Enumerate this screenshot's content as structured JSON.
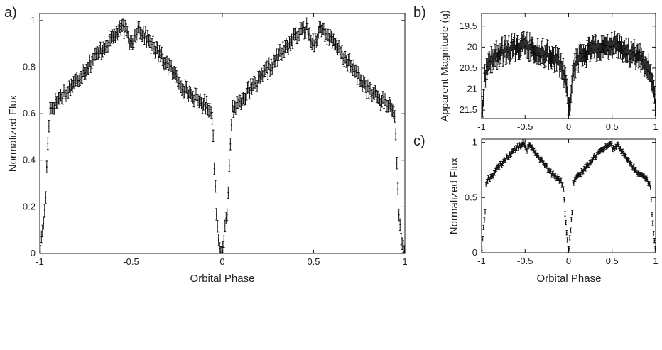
{
  "chart_data": [
    {
      "panel_label": "a)",
      "type": "scatter",
      "xlabel": "Orbital Phase",
      "ylabel": "Normalized Flux",
      "xlim": [
        -1,
        1
      ],
      "ylim": [
        0,
        1.03
      ],
      "y_reversed": false,
      "xticks": [
        -1,
        -0.5,
        0,
        0.5,
        1
      ],
      "yticks": [
        0,
        0.2,
        0.4,
        0.6,
        0.8,
        1
      ],
      "grid": false,
      "error_bars": true,
      "points_per_cycle": 170,
      "err": 0.025,
      "series": [
        {
          "x": [
            -1,
            -0.97,
            -0.955,
            -0.945,
            -0.93,
            -0.9,
            -0.8,
            -0.7,
            -0.6,
            -0.54,
            -0.5,
            -0.46,
            -0.4,
            -0.3,
            -0.2,
            -0.1,
            -0.06,
            -0.05,
            -0.04,
            -0.03,
            -0.02,
            0
          ],
          "y": [
            0.0,
            0.2,
            0.5,
            0.62,
            0.63,
            0.66,
            0.74,
            0.84,
            0.93,
            0.97,
            0.9,
            0.97,
            0.91,
            0.81,
            0.7,
            0.64,
            0.62,
            0.5,
            0.3,
            0.15,
            0.05,
            0.0
          ]
        }
      ]
    },
    {
      "panel_label": "b)",
      "type": "scatter",
      "xlabel": "",
      "ylabel": "Apparent Magnitude (g)",
      "xlim": [
        -1,
        1
      ],
      "ylim": [
        19.2,
        21.7
      ],
      "y_reversed": true,
      "xticks": [
        -1,
        -0.5,
        0,
        0.5,
        1
      ],
      "yticks": [
        19.5,
        20,
        20.5,
        21,
        21.5
      ],
      "grid": false,
      "error_bars": true,
      "points_per_cycle": 120,
      "err": 0.2,
      "series": [
        {
          "x": [
            -1,
            -0.98,
            -0.96,
            -0.94,
            -0.9,
            -0.8,
            -0.7,
            -0.6,
            -0.5,
            -0.4,
            -0.3,
            -0.2,
            -0.1,
            -0.06,
            -0.04,
            -0.02,
            0
          ],
          "y": [
            21.5,
            21.2,
            20.7,
            20.5,
            20.3,
            20.15,
            20.05,
            20.0,
            19.95,
            20.05,
            20.15,
            20.2,
            20.4,
            20.55,
            20.8,
            21.1,
            21.5
          ]
        }
      ]
    },
    {
      "panel_label": "c)",
      "type": "scatter",
      "xlabel": "Orbital Phase",
      "ylabel": "Normalized Flux",
      "xlim": [
        -1,
        1
      ],
      "ylim": [
        0,
        1.03
      ],
      "y_reversed": false,
      "xticks": [
        -1,
        -0.5,
        0,
        0.5,
        1
      ],
      "yticks": [
        0,
        0.5,
        1
      ],
      "grid": false,
      "error_bars": true,
      "points_per_cycle": 110,
      "err": 0.02,
      "series": [
        {
          "x": [
            -1,
            -0.98,
            -0.96,
            -0.95,
            -0.93,
            -0.9,
            -0.8,
            -0.7,
            -0.6,
            -0.52,
            -0.48,
            -0.44,
            -0.4,
            -0.3,
            -0.2,
            -0.1,
            -0.06,
            -0.04,
            -0.02,
            0
          ],
          "y": [
            0.0,
            0.2,
            0.35,
            0.62,
            0.66,
            0.68,
            0.78,
            0.87,
            0.95,
            0.99,
            0.93,
            0.98,
            0.93,
            0.82,
            0.72,
            0.66,
            0.6,
            0.35,
            0.15,
            0.0
          ]
        }
      ]
    }
  ]
}
